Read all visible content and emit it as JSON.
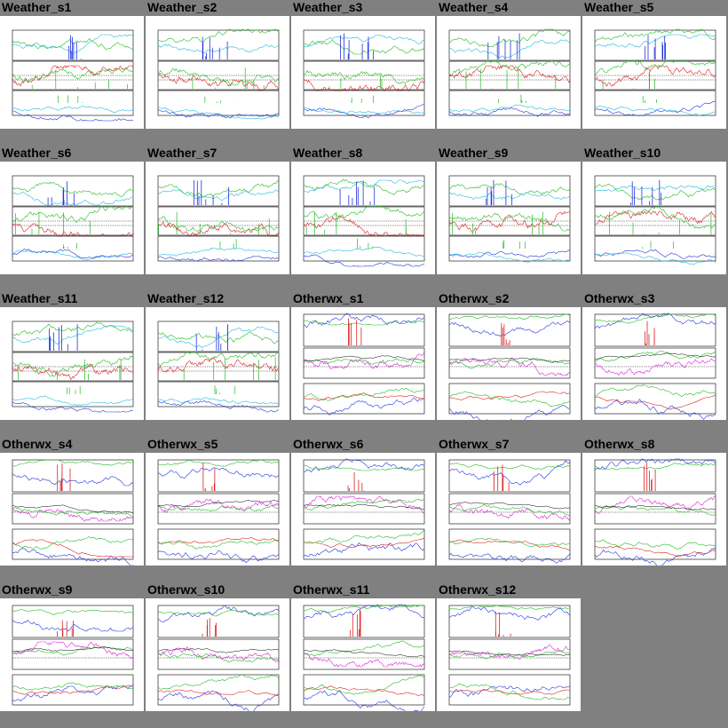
{
  "chart_data": [
    {
      "type": "line",
      "title": "Weather_s1",
      "variant": "weather"
    },
    {
      "type": "line",
      "title": "Weather_s2",
      "variant": "weather"
    },
    {
      "type": "line",
      "title": "Weather_s3",
      "variant": "weather"
    },
    {
      "type": "line",
      "title": "Weather_s4",
      "variant": "weather"
    },
    {
      "type": "line",
      "title": "Weather_s5",
      "variant": "weather"
    },
    {
      "type": "line",
      "title": "Weather_s6",
      "variant": "weather"
    },
    {
      "type": "line",
      "title": "Weather_s7",
      "variant": "weather"
    },
    {
      "type": "line",
      "title": "Weather_s8",
      "variant": "weather"
    },
    {
      "type": "line",
      "title": "Weather_s9",
      "variant": "weather"
    },
    {
      "type": "line",
      "title": "Weather_s10",
      "variant": "weather"
    },
    {
      "type": "line",
      "title": "Weather_s11",
      "variant": "weather"
    },
    {
      "type": "line",
      "title": "Weather_s12",
      "variant": "weather"
    },
    {
      "type": "line",
      "title": "Otherwx_s1",
      "variant": "otherwx"
    },
    {
      "type": "line",
      "title": "Otherwx_s2",
      "variant": "otherwx"
    },
    {
      "type": "line",
      "title": "Otherwx_s3",
      "variant": "otherwx"
    },
    {
      "type": "line",
      "title": "Otherwx_s4",
      "variant": "otherwx"
    },
    {
      "type": "line",
      "title": "Otherwx_s5",
      "variant": "otherwx"
    },
    {
      "type": "line",
      "title": "Otherwx_s6",
      "variant": "otherwx"
    },
    {
      "type": "line",
      "title": "Otherwx_s7",
      "variant": "otherwx"
    },
    {
      "type": "line",
      "title": "Otherwx_s8",
      "variant": "otherwx"
    },
    {
      "type": "line",
      "title": "Otherwx_s9",
      "variant": "otherwx"
    },
    {
      "type": "line",
      "title": "Otherwx_s10",
      "variant": "otherwx"
    },
    {
      "type": "line",
      "title": "Otherwx_s11",
      "variant": "otherwx"
    },
    {
      "type": "line",
      "title": "Otherwx_s12",
      "variant": "otherwx"
    }
  ],
  "colors": {
    "background": "#808080",
    "panel": "#ffffff",
    "green": "#22bb22",
    "red": "#dd2222",
    "blue": "#2233dd",
    "cyan": "#22bbdd",
    "magenta": "#dd22dd",
    "black": "#000000"
  }
}
